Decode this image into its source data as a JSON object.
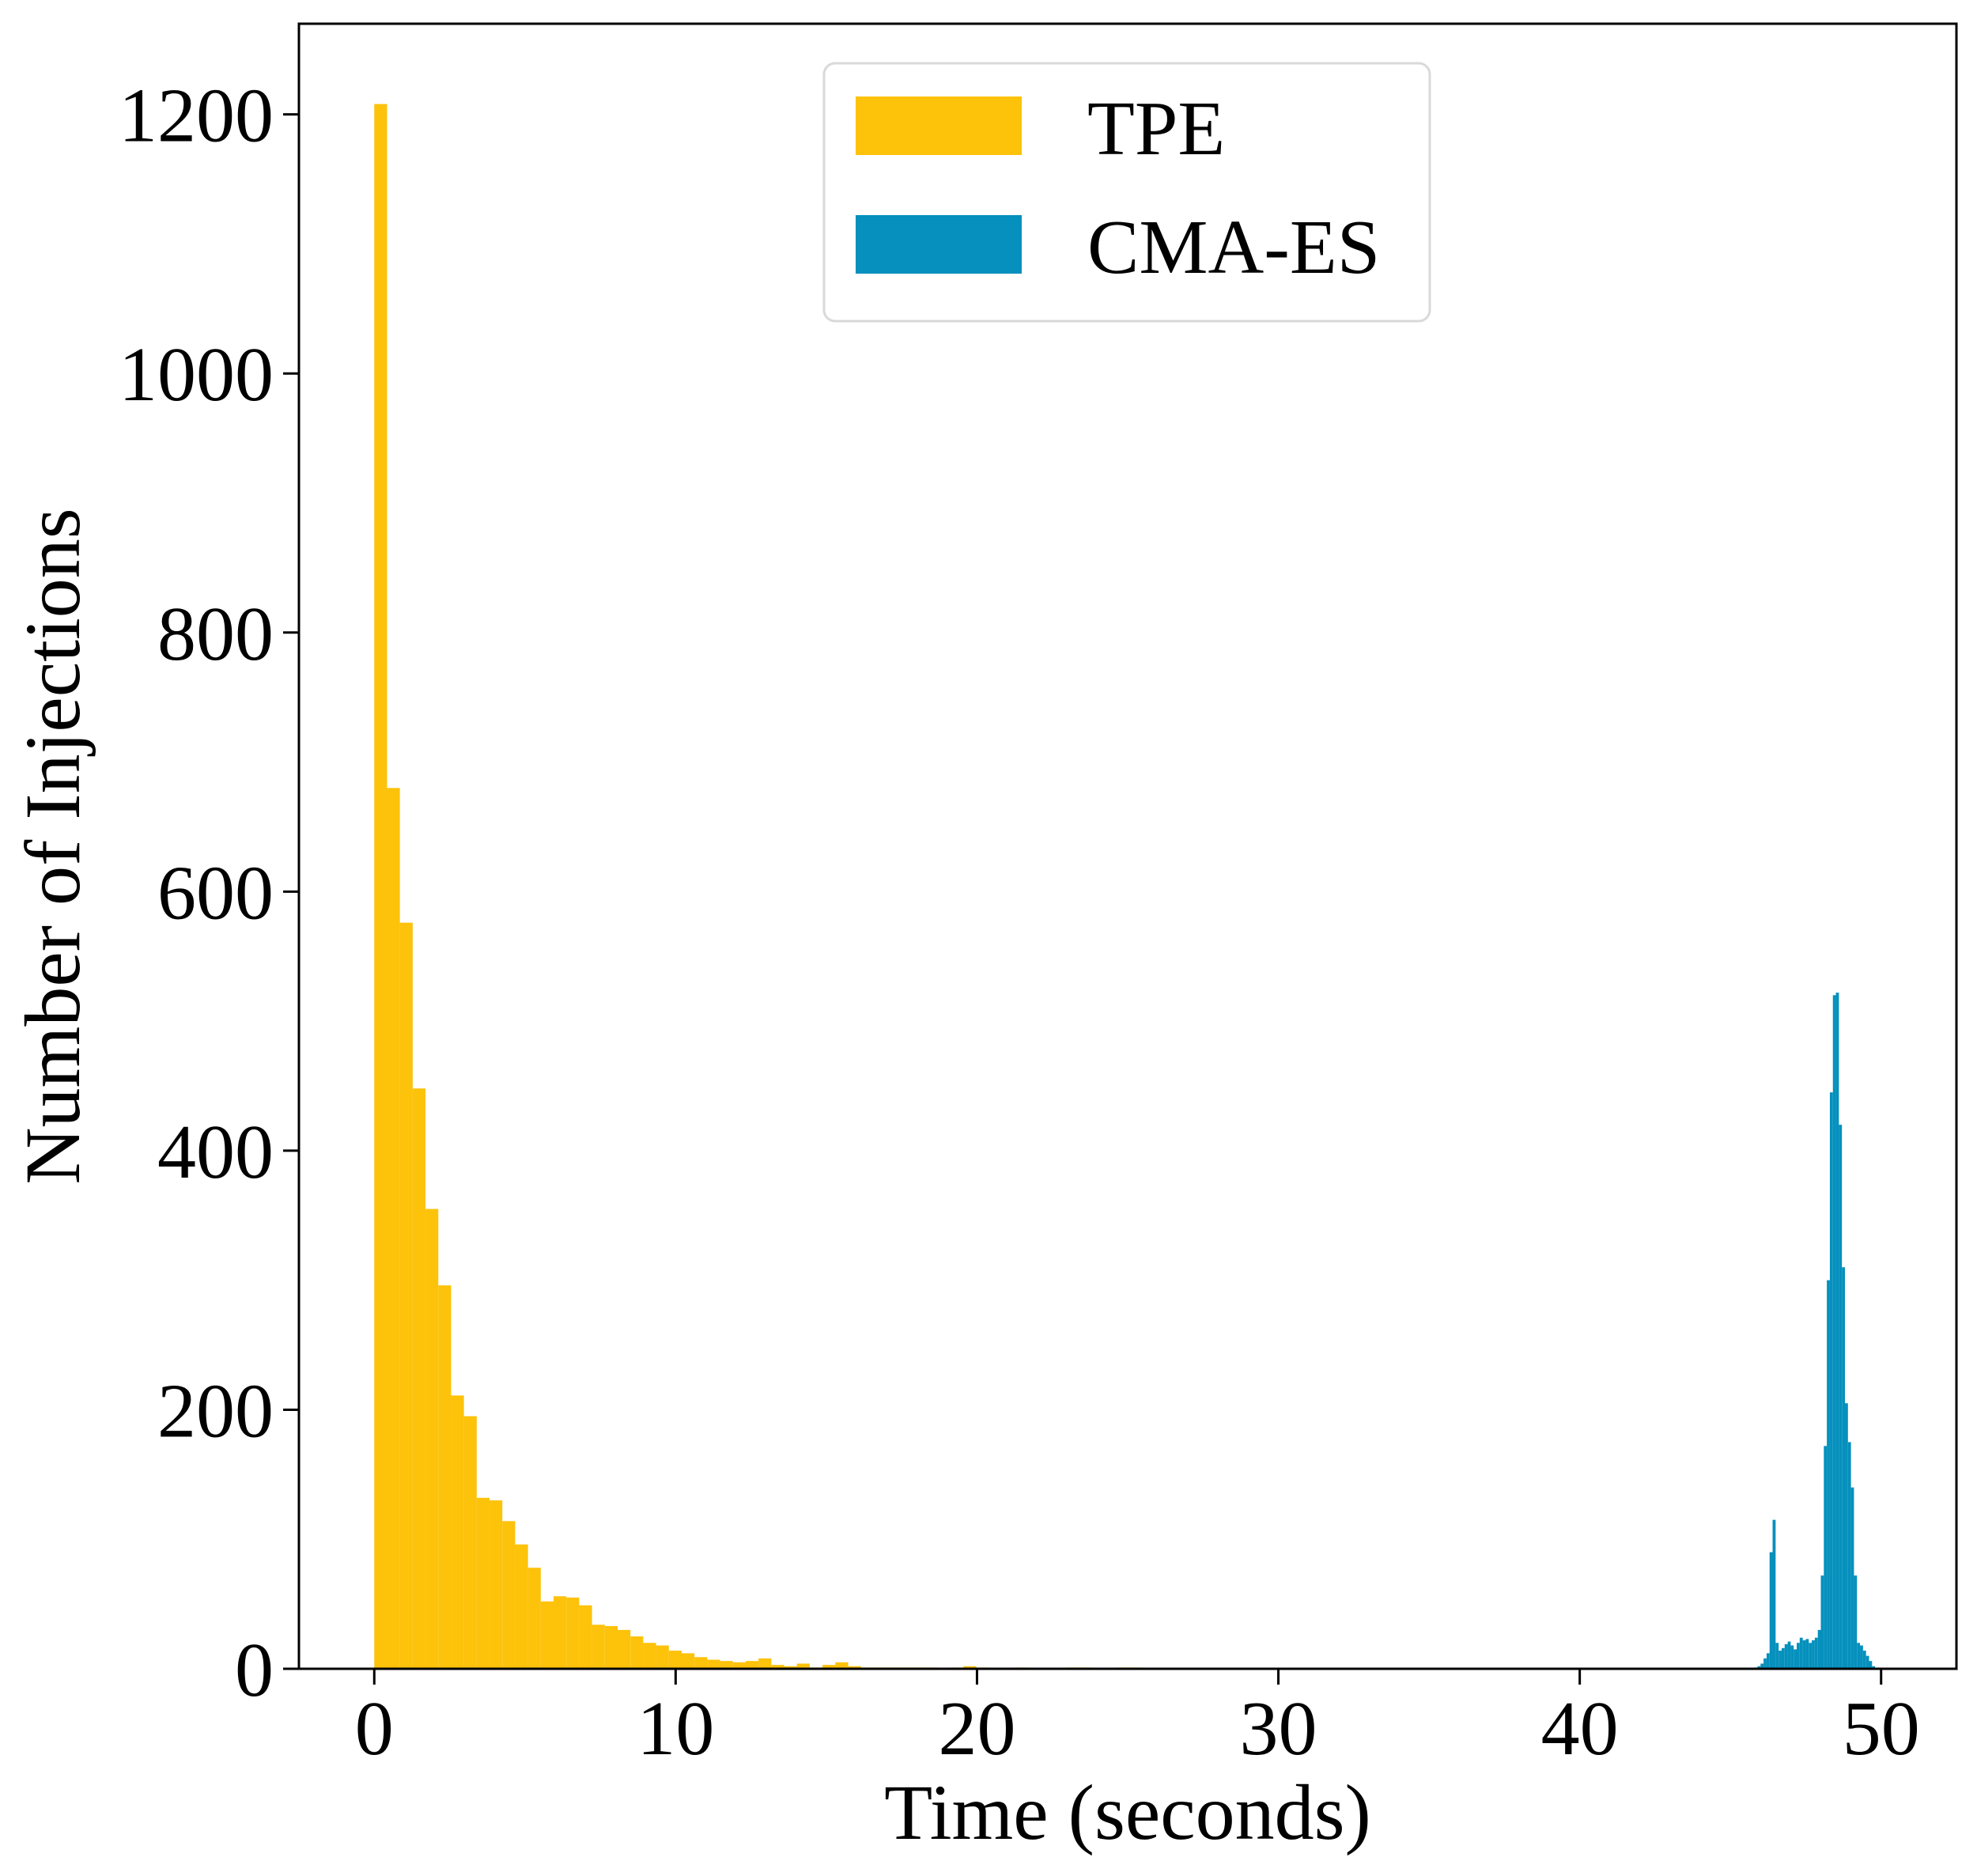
{
  "chart_data": {
    "type": "histogram",
    "title": "",
    "xlabel": "Time (seconds)",
    "ylabel": "Number of Injections",
    "xlim": [
      -2.5,
      52.5
    ],
    "ylim": [
      0,
      1270
    ],
    "xticks": [
      0,
      10,
      20,
      30,
      40,
      50
    ],
    "yticks": [
      0,
      200,
      400,
      600,
      800,
      1000,
      1200
    ],
    "legend_position": "upper-center",
    "series": [
      {
        "name": "TPE",
        "color": "#fdc20a",
        "bin_width": 0.425,
        "bin_start": 0.0,
        "values": [
          1208,
          680,
          576,
          448,
          355,
          296,
          211,
          195,
          132,
          130,
          114,
          96,
          78,
          52,
          56,
          55,
          49,
          34,
          33,
          30,
          25,
          20,
          18,
          14,
          12,
          9,
          7,
          6,
          5,
          6,
          8,
          3,
          2,
          4,
          1,
          3,
          5,
          2,
          1,
          1,
          1,
          1,
          1,
          1,
          0,
          1,
          2,
          1,
          0,
          0,
          1,
          0,
          0,
          0,
          1,
          1,
          0,
          0,
          1,
          1
        ]
      },
      {
        "name": "CMA-ES",
        "color": "#0590bd",
        "bin_width": 0.1,
        "bin_start": 45.8,
        "values": [
          1,
          2,
          4,
          8,
          12,
          90,
          115,
          20,
          14,
          16,
          19,
          21,
          18,
          15,
          20,
          24,
          22,
          23,
          20,
          22,
          24,
          30,
          72,
          172,
          300,
          445,
          520,
          522,
          420,
          310,
          205,
          175,
          140,
          72,
          20,
          18,
          14,
          10,
          6,
          2
        ]
      }
    ]
  }
}
